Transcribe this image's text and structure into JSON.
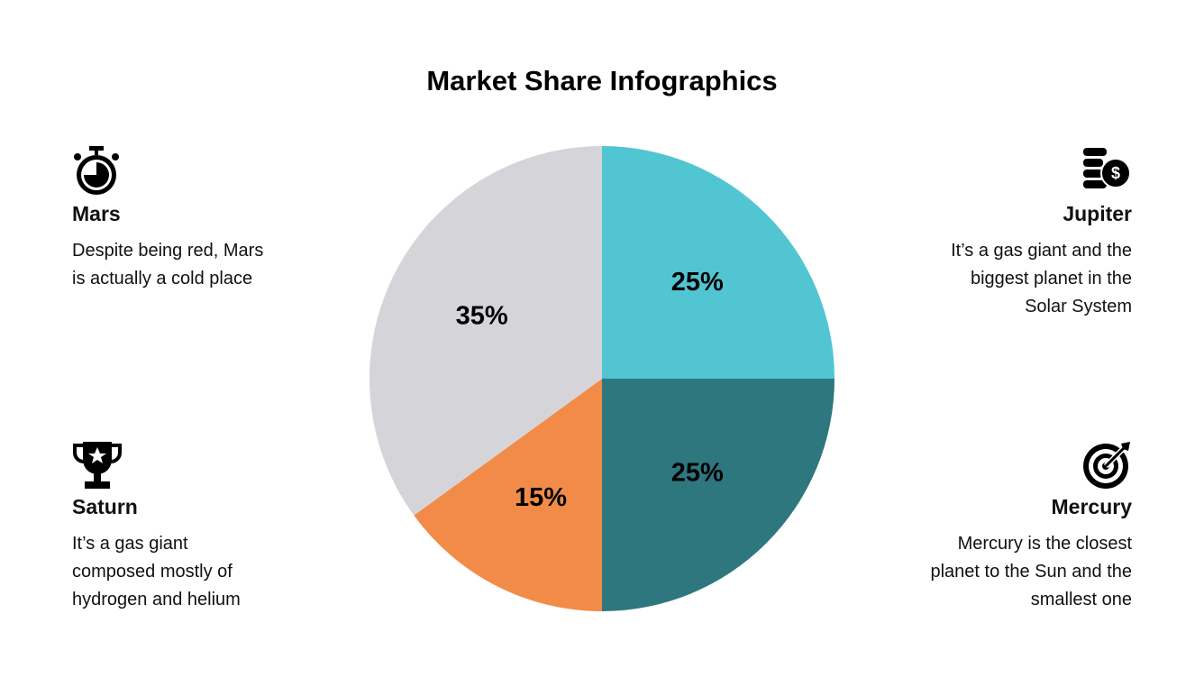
{
  "chart_data": {
    "type": "pie",
    "title": "Market Share Infographics",
    "values": [
      25,
      25,
      15,
      35
    ],
    "value_labels": [
      "25%",
      "25%",
      "15%",
      "35%"
    ],
    "colors": [
      "#52c5d3",
      "#2e777e",
      "#f28b48",
      "#d5d5d9"
    ]
  },
  "panels": [
    {
      "title": "Mars",
      "text": "Despite being red, Mars is actually a cold place"
    },
    {
      "title": "Jupiter",
      "text": "It’s a gas giant and the biggest planet in the Solar System"
    },
    {
      "title": "Saturn",
      "text": "It’s a gas giant composed mostly of hydrogen and helium"
    },
    {
      "title": "Mercury",
      "text": "Mercury is the closest planet to the Sun and the smallest one"
    }
  ]
}
